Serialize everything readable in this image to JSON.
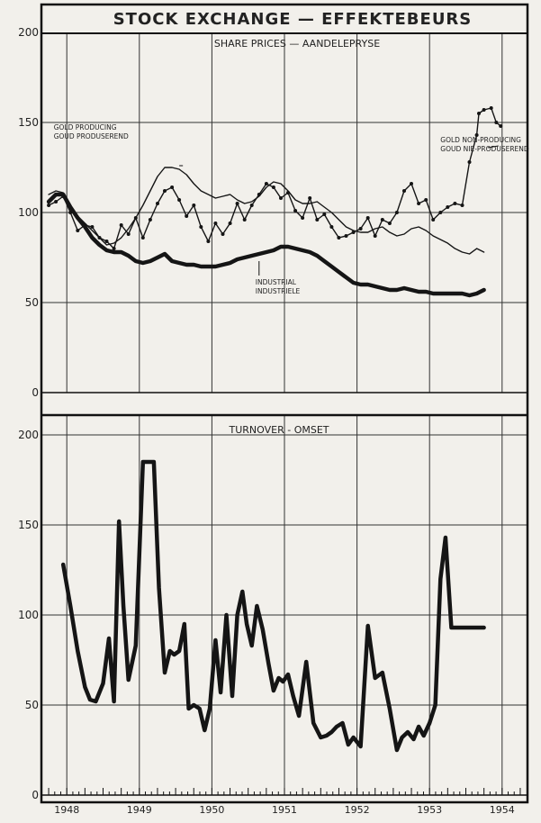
{
  "title": "STOCK EXCHANGE — EFFEKTEBEURS",
  "x_labels": [
    "1948",
    "1949",
    "1950",
    "1951",
    "1952",
    "1953",
    "1954"
  ],
  "chart_data": [
    {
      "type": "line",
      "title": "SHARE PRICES — AANDELEPRYSE",
      "ylim": [
        0,
        200
      ],
      "yticks": [
        0,
        50,
        100,
        150,
        200
      ],
      "x_range": [
        1947.65,
        1954.35
      ],
      "series": [
        {
          "name": "GOLD PRODUCING / GOUD PRODUSEREND",
          "label_lines": [
            "GOLD PRODUCING",
            "GOUD PRODUSEREND"
          ],
          "style": "thin",
          "x": [
            1947.75,
            1947.85,
            1947.95,
            1948.05,
            1948.15,
            1948.25,
            1948.35,
            1948.45,
            1948.55,
            1948.65,
            1948.75,
            1948.85,
            1948.95,
            1949.05,
            1949.15,
            1949.25,
            1949.35,
            1949.45,
            1949.55,
            1949.65,
            1949.75,
            1949.85,
            1949.95,
            1950.05,
            1950.15,
            1950.25,
            1950.35,
            1950.45,
            1950.55,
            1950.65,
            1950.75,
            1950.85,
            1950.95,
            1951.05,
            1951.15,
            1951.25,
            1951.35,
            1951.45,
            1951.55,
            1951.65,
            1951.75,
            1951.85,
            1951.95,
            1952.05,
            1952.15,
            1952.25,
            1952.35,
            1952.45,
            1952.55,
            1952.65,
            1952.75,
            1952.85,
            1952.95,
            1953.05,
            1953.15,
            1953.25,
            1953.35,
            1953.45,
            1953.55,
            1953.65,
            1953.75
          ],
          "values": [
            110,
            112,
            111,
            104,
            98,
            94,
            90,
            86,
            82,
            83,
            86,
            91,
            97,
            104,
            112,
            120,
            125,
            125,
            124,
            121,
            116,
            112,
            110,
            108,
            109,
            110,
            107,
            105,
            106,
            109,
            114,
            117,
            116,
            112,
            107,
            105,
            105,
            106,
            103,
            100,
            96,
            92,
            90,
            89,
            89,
            91,
            92,
            89,
            87,
            88,
            91,
            92,
            90,
            87,
            85,
            83,
            80,
            78,
            77,
            80,
            78
          ]
        },
        {
          "name": "GOLD NON-PRODUCING / GOUD NIE-PRODUSEREND",
          "label_lines": [
            "GOLD NON-PRODUCING",
            "GOUD NIE-PRODUSEREND"
          ],
          "style": "dotted",
          "x": [
            1947.75,
            1947.85,
            1947.95,
            1948.05,
            1948.15,
            1948.25,
            1948.35,
            1948.45,
            1948.55,
            1948.65,
            1948.75,
            1948.85,
            1948.95,
            1949.05,
            1949.15,
            1949.25,
            1949.35,
            1949.45,
            1949.55,
            1949.65,
            1949.75,
            1949.85,
            1949.95,
            1950.05,
            1950.15,
            1950.25,
            1950.35,
            1950.45,
            1950.55,
            1950.65,
            1950.75,
            1950.85,
            1950.95,
            1951.05,
            1951.15,
            1951.25,
            1951.35,
            1951.45,
            1951.55,
            1951.65,
            1951.75,
            1951.85,
            1951.95,
            1952.05,
            1952.15,
            1952.25,
            1952.35,
            1952.45,
            1952.55,
            1952.65,
            1952.75,
            1952.85,
            1952.95,
            1953.05,
            1953.15,
            1953.25,
            1953.35,
            1953.45,
            1953.55,
            1953.65,
            1953.68,
            1953.75,
            1953.85,
            1953.92,
            1953.98
          ],
          "values": [
            104,
            106,
            109,
            100,
            90,
            93,
            92,
            86,
            84,
            80,
            93,
            88,
            97,
            86,
            96,
            105,
            112,
            114,
            107,
            98,
            104,
            92,
            84,
            94,
            88,
            94,
            105,
            96,
            104,
            110,
            116,
            114,
            108,
            111,
            101,
            97,
            108,
            96,
            99,
            92,
            86,
            87,
            89,
            91,
            97,
            87,
            96,
            94,
            100,
            112,
            116,
            105,
            107,
            96,
            100,
            103,
            105,
            104,
            128,
            143,
            155,
            157,
            158,
            150,
            148
          ]
        },
        {
          "name": "INDUSTRIAL / INDUSTRIELE",
          "label_lines": [
            "INDUSTRIAL",
            "INDUSTRIELE"
          ],
          "style": "thick",
          "x": [
            1947.75,
            1947.85,
            1947.95,
            1948.05,
            1948.15,
            1948.25,
            1948.35,
            1948.45,
            1948.55,
            1948.65,
            1948.75,
            1948.85,
            1948.95,
            1949.05,
            1949.15,
            1949.25,
            1949.35,
            1949.45,
            1949.55,
            1949.65,
            1949.75,
            1949.85,
            1949.95,
            1950.05,
            1950.15,
            1950.25,
            1950.35,
            1950.45,
            1950.55,
            1950.65,
            1950.75,
            1950.85,
            1950.95,
            1951.05,
            1951.15,
            1951.25,
            1951.35,
            1951.45,
            1951.55,
            1951.65,
            1951.75,
            1951.85,
            1951.95,
            1952.05,
            1952.15,
            1952.25,
            1952.35,
            1952.45,
            1952.55,
            1952.65,
            1952.75,
            1952.85,
            1952.95,
            1953.05,
            1953.15,
            1953.25,
            1953.35,
            1953.45,
            1953.55,
            1953.65,
            1953.75
          ],
          "values": [
            106,
            110,
            110,
            103,
            97,
            92,
            86,
            82,
            79,
            78,
            78,
            76,
            73,
            72,
            73,
            75,
            77,
            73,
            72,
            71,
            71,
            70,
            70,
            70,
            71,
            72,
            74,
            75,
            76,
            77,
            78,
            79,
            81,
            81,
            80,
            79,
            78,
            76,
            73,
            70,
            67,
            64,
            61,
            60,
            60,
            59,
            58,
            57,
            57,
            58,
            57,
            56,
            56,
            55,
            55,
            55,
            55,
            55,
            54,
            55,
            57
          ]
        }
      ]
    },
    {
      "type": "line",
      "title": "TURNOVER - OMSET",
      "ylim": [
        0,
        200
      ],
      "yticks": [
        0,
        50,
        100,
        150,
        200
      ],
      "x_range": [
        1947.65,
        1954.35
      ],
      "series": [
        {
          "name": "TURNOVER",
          "style": "thick",
          "x": [
            1947.95,
            1948.05,
            1948.15,
            1948.25,
            1948.32,
            1948.4,
            1948.5,
            1948.58,
            1948.65,
            1948.72,
            1948.78,
            1948.85,
            1948.95,
            1949.05,
            1949.12,
            1949.2,
            1949.27,
            1949.35,
            1949.42,
            1949.48,
            1949.55,
            1949.62,
            1949.68,
            1949.75,
            1949.83,
            1949.9,
            1949.97,
            1950.05,
            1950.12,
            1950.2,
            1950.28,
            1950.35,
            1950.42,
            1950.48,
            1950.55,
            1950.62,
            1950.7,
            1950.78,
            1950.85,
            1950.92,
            1950.98,
            1951.05,
            1951.12,
            1951.2,
            1951.3,
            1951.4,
            1951.5,
            1951.58,
            1951.65,
            1951.72,
            1951.8,
            1951.88,
            1951.95,
            1952.05,
            1952.15,
            1952.25,
            1952.35,
            1952.45,
            1952.55,
            1952.62,
            1952.7,
            1952.78,
            1952.85,
            1952.92,
            1953.0,
            1953.08,
            1953.15,
            1953.22,
            1953.3,
            1953.38,
            1953.45,
            1953.5,
            1953.55,
            1953.62,
            1953.68,
            1953.75
          ],
          "values": [
            128,
            105,
            80,
            60,
            53,
            52,
            62,
            87,
            52,
            152,
            105,
            64,
            83,
            185,
            185,
            185,
            115,
            68,
            80,
            78,
            80,
            95,
            48,
            50,
            48,
            36,
            48,
            86,
            57,
            100,
            55,
            100,
            113,
            95,
            83,
            105,
            92,
            73,
            58,
            65,
            63,
            67,
            55,
            44,
            74,
            40,
            32,
            33,
            35,
            38,
            40,
            28,
            32,
            27,
            94,
            65,
            68,
            48,
            25,
            32,
            35,
            31,
            38,
            33,
            40,
            50,
            120,
            143,
            93,
            93,
            93,
            93,
            93,
            93,
            93,
            93
          ]
        }
      ]
    }
  ]
}
